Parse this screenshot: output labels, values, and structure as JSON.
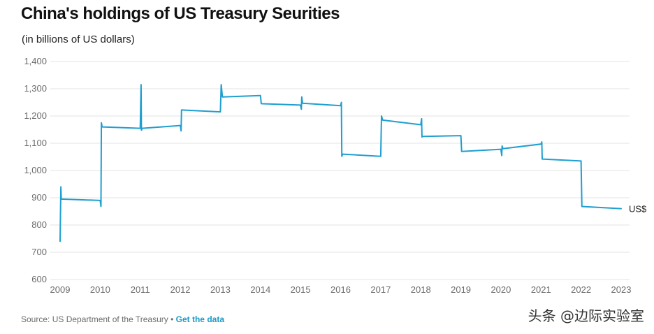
{
  "chart_data": {
    "type": "line",
    "title": "China's holdings of US Treasury Seurities",
    "subtitle": "(in billions of US dollars)",
    "xlabel": "",
    "ylabel": "",
    "xlim": [
      2009,
      2023
    ],
    "ylim": [
      600,
      1400
    ],
    "x_ticks": [
      "2009",
      "2010",
      "2011",
      "2012",
      "2013",
      "2014",
      "2015",
      "2016",
      "2017",
      "2018",
      "2019",
      "2020",
      "2021",
      "2022",
      "2023"
    ],
    "y_ticks": [
      "600",
      "700",
      "800",
      "900",
      "1,000",
      "1,100",
      "1,200",
      "1,300",
      "1,400"
    ],
    "grid": true,
    "series": [
      {
        "name": "US$",
        "color": "#1f9fd0",
        "points": [
          [
            2009.0,
            740
          ],
          [
            2009.02,
            940
          ],
          [
            2009.03,
            895
          ],
          [
            2010.0,
            890
          ],
          [
            2010.02,
            868
          ],
          [
            2010.03,
            1175
          ],
          [
            2010.05,
            1160
          ],
          [
            2011.0,
            1155
          ],
          [
            2011.02,
            1315
          ],
          [
            2011.03,
            1148
          ],
          [
            2011.05,
            1155
          ],
          [
            2012.0,
            1165
          ],
          [
            2012.02,
            1145
          ],
          [
            2012.03,
            1222
          ],
          [
            2013.0,
            1215
          ],
          [
            2013.02,
            1315
          ],
          [
            2013.05,
            1270
          ],
          [
            2014.0,
            1275
          ],
          [
            2014.02,
            1245
          ],
          [
            2015.0,
            1240
          ],
          [
            2015.02,
            1225
          ],
          [
            2015.03,
            1270
          ],
          [
            2015.05,
            1247
          ],
          [
            2016.0,
            1238
          ],
          [
            2016.02,
            1250
          ],
          [
            2016.03,
            1052
          ],
          [
            2016.05,
            1060
          ],
          [
            2017.0,
            1052
          ],
          [
            2017.02,
            1200
          ],
          [
            2017.05,
            1185
          ],
          [
            2018.0,
            1168
          ],
          [
            2018.02,
            1190
          ],
          [
            2018.03,
            1123
          ],
          [
            2018.05,
            1125
          ],
          [
            2019.0,
            1128
          ],
          [
            2019.02,
            1070
          ],
          [
            2020.0,
            1078
          ],
          [
            2020.02,
            1055
          ],
          [
            2020.03,
            1090
          ],
          [
            2020.05,
            1080
          ],
          [
            2021.0,
            1097
          ],
          [
            2021.02,
            1105
          ],
          [
            2021.03,
            1042
          ],
          [
            2022.0,
            1035
          ],
          [
            2022.02,
            868
          ],
          [
            2023.0,
            860
          ]
        ]
      }
    ]
  },
  "footer": {
    "source": "Source: US Department of the Treasury • ",
    "link": "Get the data"
  },
  "watermark": "头条 @边际实验室"
}
